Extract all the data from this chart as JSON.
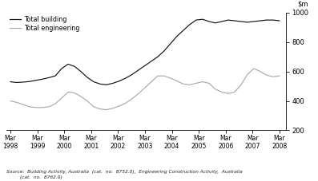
{
  "title": "",
  "source_line1": "Source:  Building Activity, Australia  (cat.  no.  8752.0),  Engineering Construction Activity,  Australia",
  "source_line2": "         (cat.  no.  8762.0)",
  "ylim": [
    200,
    1000
  ],
  "yticks": [
    200,
    400,
    600,
    800,
    1000
  ],
  "xtick_labels": [
    "Mar\n1998",
    "Mar\n1999",
    "Mar\n2000",
    "Mar\n2001",
    "Mar\n2002",
    "Mar\n2003",
    "Mar\n2004",
    "Mar\n2005",
    "Mar\n2006",
    "Mar\n2007",
    "Mar\n2008"
  ],
  "legend": [
    "Total building",
    "Total engineering"
  ],
  "line_colors": [
    "#111111",
    "#aaaaaa"
  ],
  "total_building": [
    530,
    525,
    528,
    532,
    540,
    548,
    558,
    570,
    620,
    650,
    635,
    600,
    560,
    530,
    515,
    510,
    520,
    535,
    555,
    580,
    610,
    640,
    670,
    700,
    740,
    790,
    840,
    880,
    920,
    950,
    955,
    940,
    930,
    940,
    950,
    945,
    940,
    935,
    940,
    945,
    950,
    950,
    945
  ],
  "total_engineering": [
    400,
    390,
    375,
    360,
    355,
    355,
    360,
    380,
    420,
    460,
    455,
    430,
    400,
    360,
    345,
    340,
    350,
    365,
    385,
    415,
    450,
    490,
    530,
    570,
    570,
    555,
    535,
    515,
    510,
    520,
    530,
    520,
    480,
    460,
    450,
    460,
    510,
    580,
    620,
    600,
    575,
    565,
    570
  ]
}
